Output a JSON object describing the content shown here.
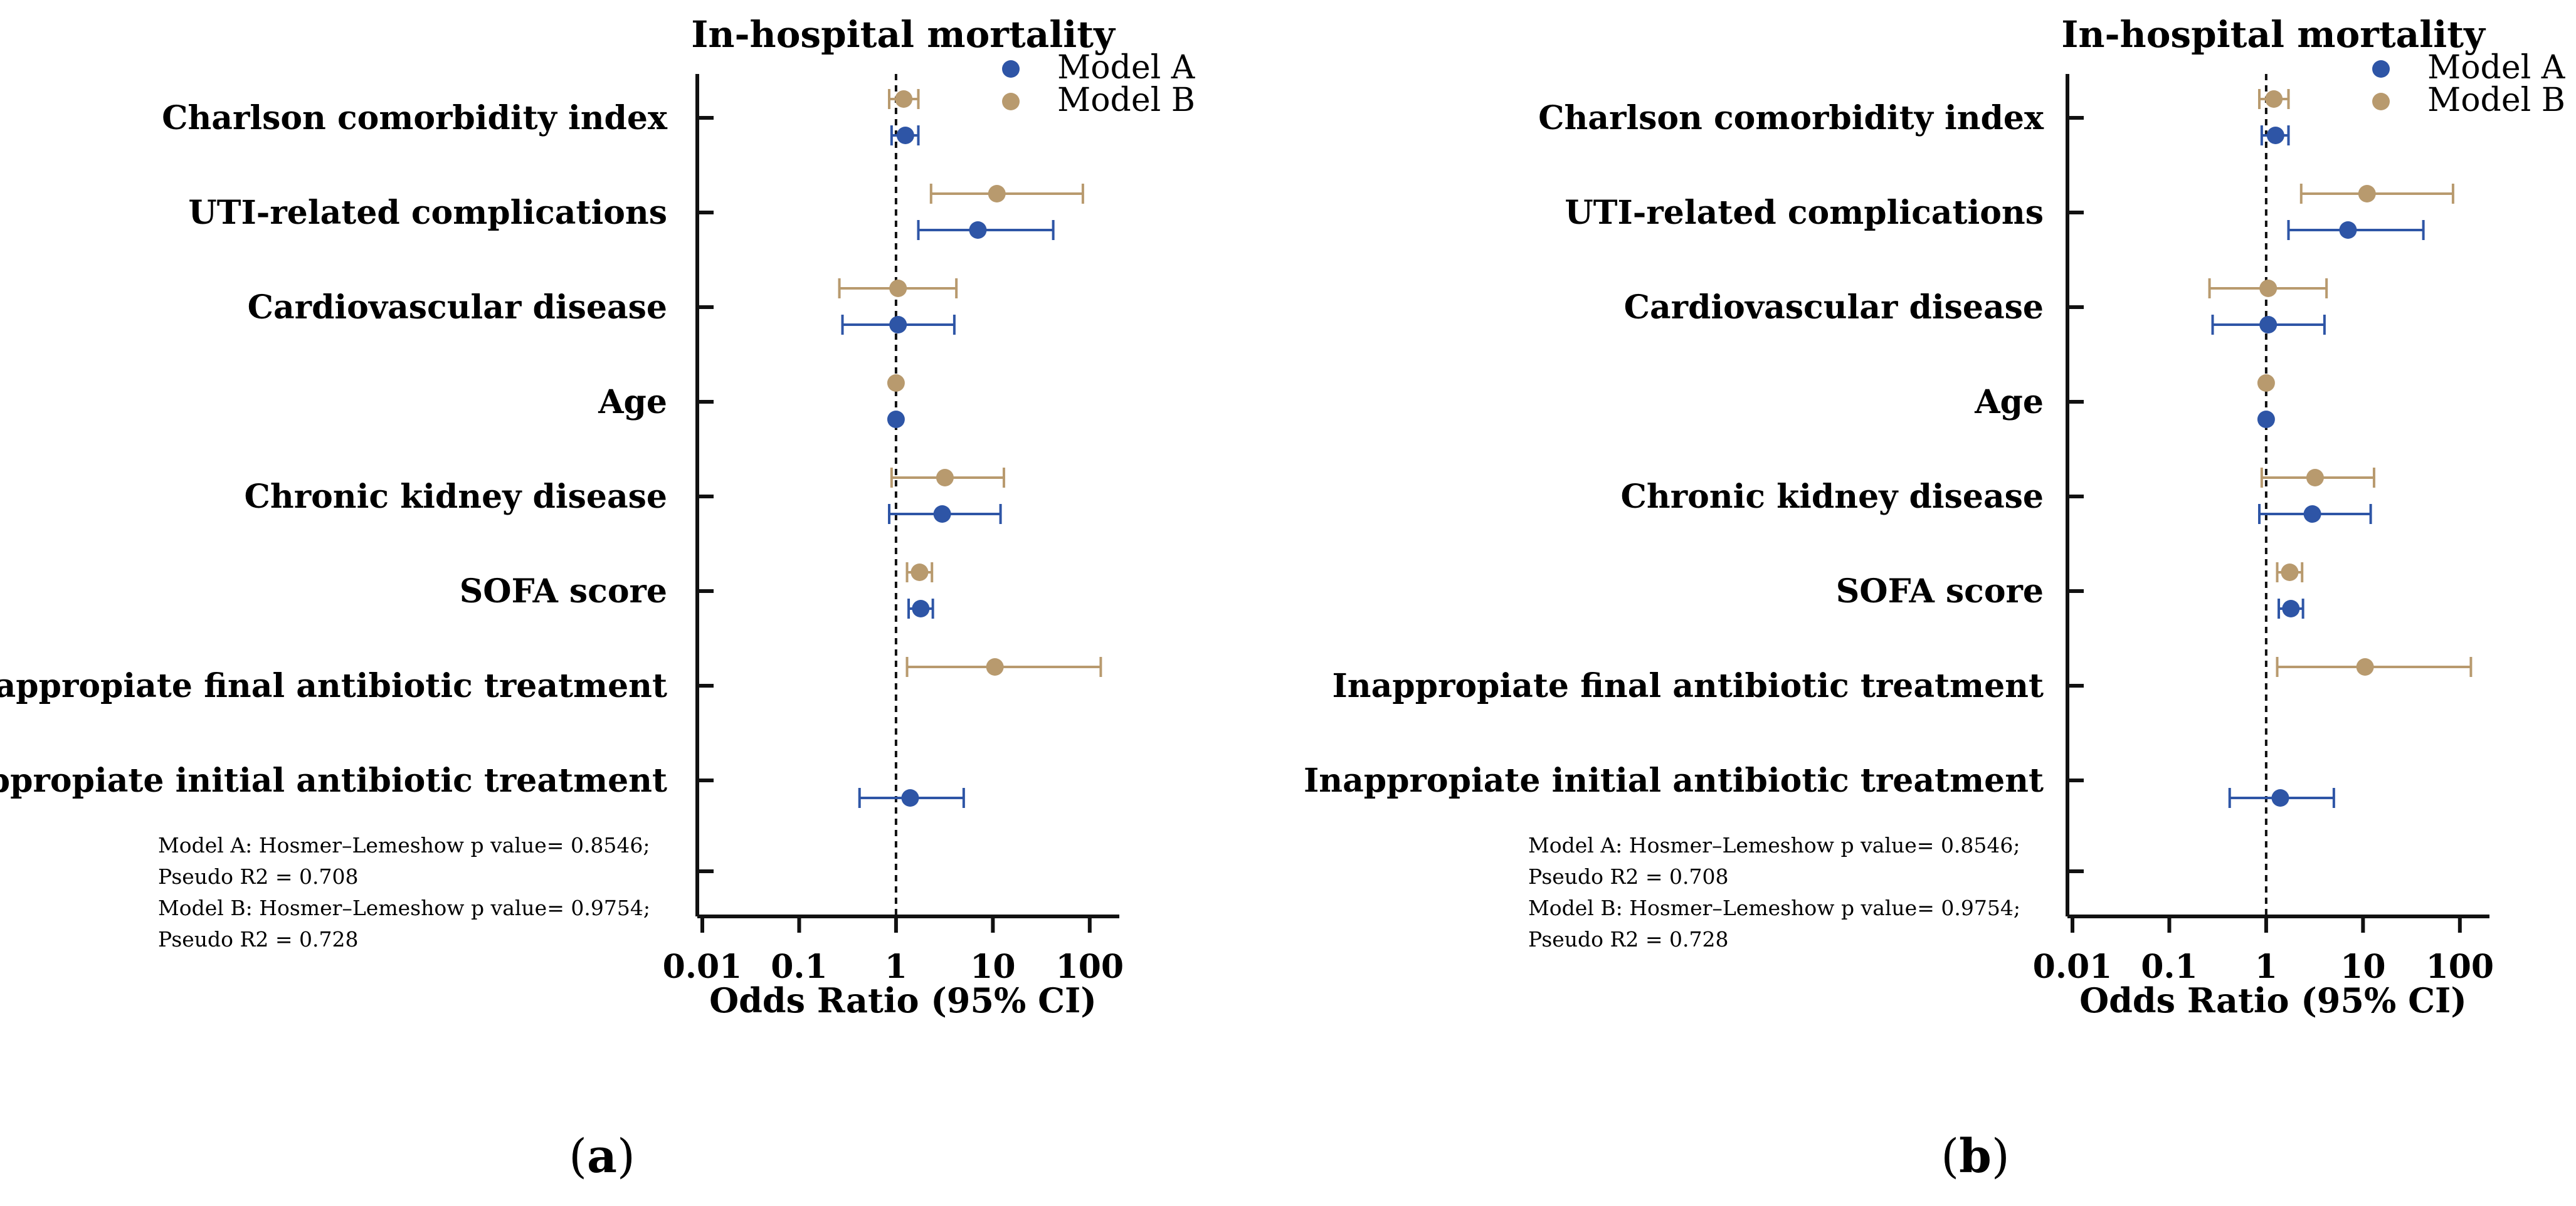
{
  "chart_data": [
    {
      "panel_id": "a",
      "type": "forest",
      "title": "In-hospital mortality",
      "xlabel": "Odds Ratio (95% CI)",
      "xscale": "log",
      "xlim": [
        0.01,
        150
      ],
      "xticks": [
        "0.01",
        "0.1",
        "1",
        "10",
        "100"
      ],
      "xtick_values": [
        0.01,
        0.1,
        1,
        10,
        100
      ],
      "reference_line": 1,
      "legend_position": "top-right",
      "categories": [
        "Charlson comorbidity index",
        "UTI-related complications",
        "Cardiovascular disease",
        "Age",
        "Chronic kidney disease",
        "SOFA score",
        "Inappropiate final antibiotic treatment",
        "Inappropiate initial antibiotic treatment"
      ],
      "series": [
        {
          "name": "Model A",
          "color": "#2e55a6",
          "or": [
            1.25,
            7.0,
            1.05,
            1.0,
            3.0,
            1.8,
            null,
            1.4
          ],
          "lower": [
            0.9,
            1.7,
            0.28,
            1.0,
            0.85,
            1.35,
            null,
            0.42
          ],
          "upper": [
            1.7,
            42,
            4.0,
            1.0,
            12,
            2.4,
            null,
            5.0
          ]
        },
        {
          "name": "Model B",
          "color": "#b89a6e",
          "or": [
            1.2,
            11,
            1.05,
            1.0,
            3.2,
            1.75,
            10.5,
            null
          ],
          "lower": [
            0.85,
            2.3,
            0.26,
            1.0,
            0.9,
            1.3,
            1.3,
            null
          ],
          "upper": [
            1.7,
            85,
            4.2,
            1.0,
            13,
            2.35,
            130,
            null
          ]
        }
      ],
      "notes": [
        "Model A: Hosmer–Lemeshow p value= 0.8546;",
        "Pseudo R2 = 0.708",
        "Model B: Hosmer–Lemeshow p value= 0.9754;",
        "Pseudo R2 = 0.728"
      ]
    },
    {
      "panel_id": "b",
      "type": "forest",
      "title": "In-hospital mortality",
      "xlabel": "Odds Ratio (95% CI)",
      "xscale": "log",
      "xlim": [
        0.01,
        150
      ],
      "xticks": [
        "0.01",
        "0.1",
        "1",
        "10",
        "100"
      ],
      "xtick_values": [
        0.01,
        0.1,
        1,
        10,
        100
      ],
      "reference_line": 1,
      "legend_position": "top-right",
      "categories": [
        "Charlson comorbidity index",
        "UTI-related complications",
        "Cardiovascular disease",
        "Age",
        "Chronic kidney disease",
        "SOFA score",
        "Inappropiate final antibiotic treatment",
        "Inappropiate initial antibiotic treatment"
      ],
      "series": [
        {
          "name": "Model A",
          "color": "#2e55a6",
          "or": [
            1.25,
            7.0,
            1.05,
            1.0,
            3.0,
            1.8,
            null,
            1.4
          ],
          "lower": [
            0.9,
            1.7,
            0.28,
            1.0,
            0.85,
            1.35,
            null,
            0.42
          ],
          "upper": [
            1.7,
            42,
            4.0,
            1.0,
            12,
            2.4,
            null,
            5.0
          ]
        },
        {
          "name": "Model B",
          "color": "#b89a6e",
          "or": [
            1.2,
            11,
            1.05,
            1.0,
            3.2,
            1.75,
            10.5,
            null
          ],
          "lower": [
            0.85,
            2.3,
            0.26,
            1.0,
            0.9,
            1.3,
            1.3,
            null
          ],
          "upper": [
            1.7,
            85,
            4.2,
            1.0,
            13,
            2.35,
            130,
            null
          ]
        }
      ],
      "notes": [
        "Model A: Hosmer–Lemeshow p value= 0.8546;",
        "Pseudo R2 = 0.708",
        "Model B: Hosmer–Lemeshow p value= 0.9754;",
        "Pseudo R2 = 0.728"
      ]
    }
  ],
  "panel_labels": [
    {
      "open": "(",
      "letter": "a",
      "close": ")"
    },
    {
      "open": "(",
      "letter": "b",
      "close": ")"
    }
  ]
}
